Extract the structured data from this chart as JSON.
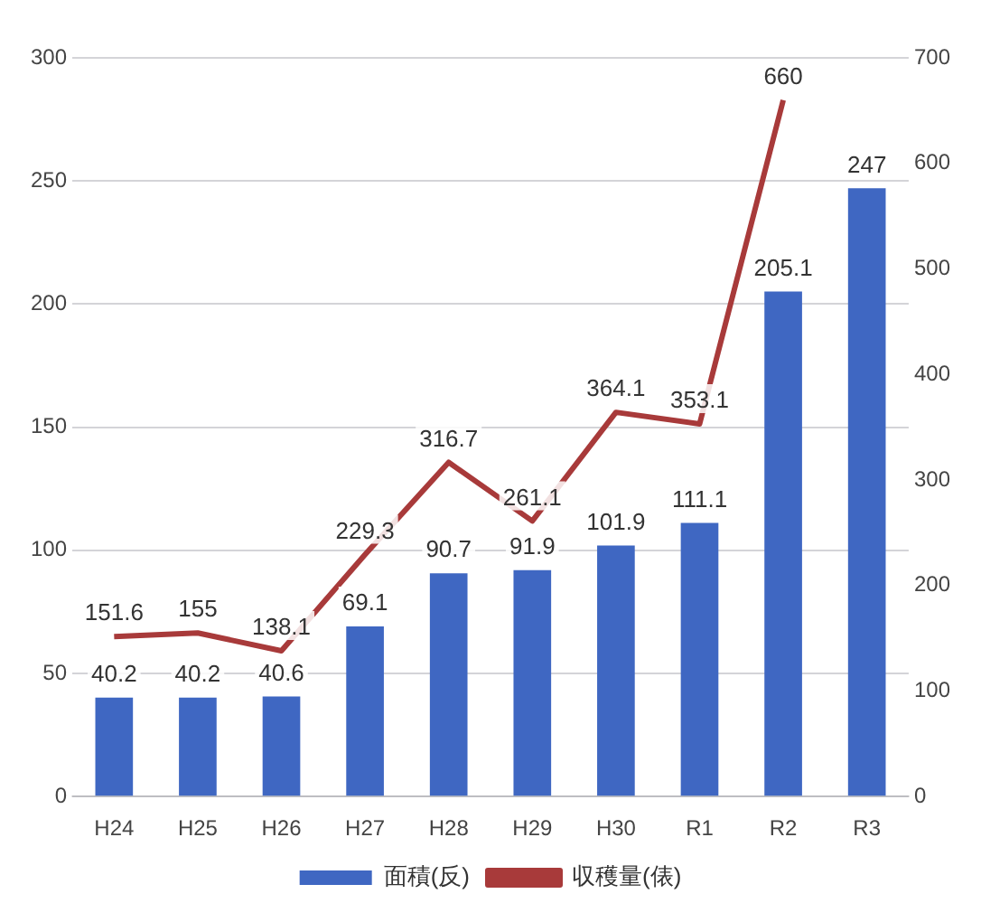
{
  "chart_data": {
    "type": "bar",
    "categories": [
      "H24",
      "H25",
      "H26",
      "H27",
      "H28",
      "H29",
      "H30",
      "R1",
      "R2",
      "R3"
    ],
    "series": [
      {
        "name": "面積(反)",
        "color": "#3f67c2",
        "values": [
          40.2,
          40.2,
          40.6,
          69.1,
          90.7,
          91.9,
          101.9,
          111.1,
          205.1,
          247
        ]
      },
      {
        "name": "収穫量(俵)",
        "type": "line",
        "axis": "y2",
        "color": "#a83a3a",
        "values": [
          151.6,
          155,
          138.1,
          229.3,
          316.7,
          261.1,
          364.1,
          353.1,
          660,
          null
        ]
      }
    ],
    "ylim": [
      0,
      300
    ],
    "yticks": [
      0,
      50,
      100,
      150,
      200,
      250,
      300
    ],
    "y2lim": [
      0,
      700
    ],
    "y2ticks": [
      0,
      100,
      200,
      300,
      400,
      500,
      600,
      700
    ],
    "grid": "y",
    "legend": "bottom",
    "data_labels": true,
    "marker": "none"
  }
}
